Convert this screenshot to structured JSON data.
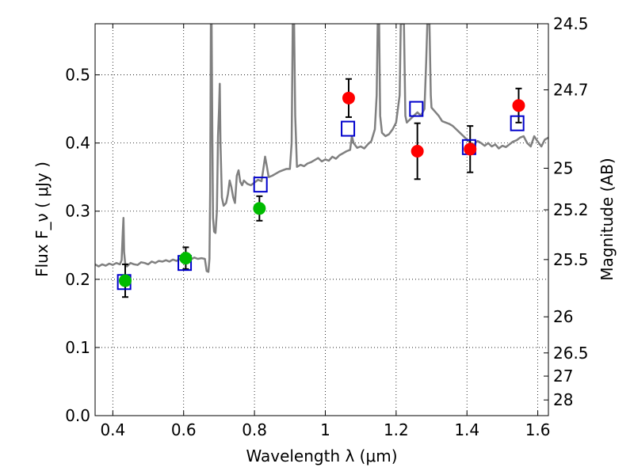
{
  "chart_data": {
    "type": "scatter",
    "xlabel": "Wavelength  λ (μm)",
    "ylabel": "Flux  F_ν  ( μJy )",
    "ylabel_right": "Magnitude (AB)",
    "xlim": [
      0.35,
      1.63
    ],
    "ylim": [
      0.0,
      0.575
    ],
    "grid": true,
    "x_ticks": [
      0.4,
      0.6,
      0.8,
      1.0,
      1.2,
      1.4,
      1.6
    ],
    "x_tick_labels": [
      "0.4",
      "0.6",
      "0.8",
      "1",
      "1.2",
      "1.4",
      "1.6"
    ],
    "y_ticks": [
      0.0,
      0.1,
      0.2,
      0.3,
      0.4,
      0.5
    ],
    "y_tick_labels": [
      "0.0",
      "0.1",
      "0.2",
      "0.3",
      "0.4",
      "0.5"
    ],
    "right_axis_ticks": [
      {
        "label": "24.5",
        "flux": 0.575
      },
      {
        "label": "24.7",
        "flux": 0.478
      },
      {
        "label": "25",
        "flux": 0.363
      },
      {
        "label": "25.2",
        "flux": 0.302
      },
      {
        "label": "25.5",
        "flux": 0.229
      },
      {
        "label": "26",
        "flux": 0.145
      },
      {
        "label": "26.5",
        "flux": 0.092
      },
      {
        "label": "27",
        "flux": 0.058
      },
      {
        "label": "28",
        "flux": 0.023
      }
    ],
    "series": [
      {
        "kind": "line",
        "color": "#808080",
        "points": [
          [
            0.35,
            0.222
          ],
          [
            0.36,
            0.219
          ],
          [
            0.37,
            0.222
          ],
          [
            0.38,
            0.22
          ],
          [
            0.39,
            0.223
          ],
          [
            0.4,
            0.221
          ],
          [
            0.41,
            0.224
          ],
          [
            0.42,
            0.222
          ],
          [
            0.425,
            0.228
          ],
          [
            0.428,
            0.268
          ],
          [
            0.43,
            0.29
          ],
          [
            0.432,
            0.24
          ],
          [
            0.435,
            0.223
          ],
          [
            0.44,
            0.219
          ],
          [
            0.45,
            0.224
          ],
          [
            0.46,
            0.222
          ],
          [
            0.47,
            0.221
          ],
          [
            0.48,
            0.225
          ],
          [
            0.49,
            0.224
          ],
          [
            0.5,
            0.222
          ],
          [
            0.51,
            0.226
          ],
          [
            0.52,
            0.224
          ],
          [
            0.53,
            0.227
          ],
          [
            0.54,
            0.226
          ],
          [
            0.55,
            0.228
          ],
          [
            0.56,
            0.226
          ],
          [
            0.57,
            0.229
          ],
          [
            0.58,
            0.227
          ],
          [
            0.59,
            0.23
          ],
          [
            0.6,
            0.228
          ],
          [
            0.61,
            0.23
          ],
          [
            0.62,
            0.229
          ],
          [
            0.63,
            0.232
          ],
          [
            0.64,
            0.23
          ],
          [
            0.65,
            0.231
          ],
          [
            0.66,
            0.23
          ],
          [
            0.665,
            0.212
          ],
          [
            0.67,
            0.211
          ],
          [
            0.673,
            0.23
          ],
          [
            0.675,
            0.33
          ],
          [
            0.677,
            0.575
          ],
          [
            0.679,
            0.575
          ],
          [
            0.681,
            0.42
          ],
          [
            0.683,
            0.29
          ],
          [
            0.686,
            0.27
          ],
          [
            0.69,
            0.268
          ],
          [
            0.694,
            0.3
          ],
          [
            0.697,
            0.41
          ],
          [
            0.7,
            0.45
          ],
          [
            0.702,
            0.487
          ],
          [
            0.704,
            0.4
          ],
          [
            0.708,
            0.32
          ],
          [
            0.713,
            0.308
          ],
          [
            0.72,
            0.312
          ],
          [
            0.725,
            0.325
          ],
          [
            0.73,
            0.345
          ],
          [
            0.735,
            0.335
          ],
          [
            0.74,
            0.32
          ],
          [
            0.745,
            0.312
          ],
          [
            0.75,
            0.352
          ],
          [
            0.755,
            0.36
          ],
          [
            0.76,
            0.343
          ],
          [
            0.765,
            0.338
          ],
          [
            0.77,
            0.345
          ],
          [
            0.78,
            0.34
          ],
          [
            0.79,
            0.338
          ],
          [
            0.8,
            0.342
          ],
          [
            0.81,
            0.346
          ],
          [
            0.82,
            0.344
          ],
          [
            0.825,
            0.362
          ],
          [
            0.83,
            0.38
          ],
          [
            0.835,
            0.366
          ],
          [
            0.84,
            0.35
          ],
          [
            0.85,
            0.352
          ],
          [
            0.86,
            0.355
          ],
          [
            0.87,
            0.358
          ],
          [
            0.88,
            0.36
          ],
          [
            0.89,
            0.362
          ],
          [
            0.9,
            0.362
          ],
          [
            0.905,
            0.4
          ],
          [
            0.908,
            0.575
          ],
          [
            0.912,
            0.575
          ],
          [
            0.915,
            0.44
          ],
          [
            0.92,
            0.365
          ],
          [
            0.93,
            0.368
          ],
          [
            0.94,
            0.366
          ],
          [
            0.95,
            0.37
          ],
          [
            0.96,
            0.372
          ],
          [
            0.97,
            0.375
          ],
          [
            0.98,
            0.378
          ],
          [
            0.99,
            0.373
          ],
          [
            1.0,
            0.376
          ],
          [
            1.01,
            0.374
          ],
          [
            1.02,
            0.38
          ],
          [
            1.03,
            0.377
          ],
          [
            1.04,
            0.382
          ],
          [
            1.05,
            0.385
          ],
          [
            1.06,
            0.388
          ],
          [
            1.07,
            0.39
          ],
          [
            1.075,
            0.41
          ],
          [
            1.08,
            0.4
          ],
          [
            1.09,
            0.393
          ],
          [
            1.1,
            0.395
          ],
          [
            1.11,
            0.392
          ],
          [
            1.12,
            0.398
          ],
          [
            1.13,
            0.403
          ],
          [
            1.14,
            0.42
          ],
          [
            1.145,
            0.47
          ],
          [
            1.148,
            0.575
          ],
          [
            1.152,
            0.575
          ],
          [
            1.155,
            0.44
          ],
          [
            1.16,
            0.415
          ],
          [
            1.17,
            0.41
          ],
          [
            1.18,
            0.413
          ],
          [
            1.19,
            0.42
          ],
          [
            1.2,
            0.43
          ],
          [
            1.21,
            0.47
          ],
          [
            1.213,
            0.575
          ],
          [
            1.222,
            0.575
          ],
          [
            1.226,
            0.44
          ],
          [
            1.23,
            0.43
          ],
          [
            1.24,
            0.435
          ],
          [
            1.25,
            0.44
          ],
          [
            1.26,
            0.445
          ],
          [
            1.27,
            0.44
          ],
          [
            1.28,
            0.45
          ],
          [
            1.285,
            0.52
          ],
          [
            1.288,
            0.575
          ],
          [
            1.294,
            0.575
          ],
          [
            1.298,
            0.47
          ],
          [
            1.3,
            0.452
          ],
          [
            1.31,
            0.446
          ],
          [
            1.32,
            0.44
          ],
          [
            1.33,
            0.432
          ],
          [
            1.34,
            0.43
          ],
          [
            1.35,
            0.428
          ],
          [
            1.36,
            0.425
          ],
          [
            1.37,
            0.42
          ],
          [
            1.38,
            0.415
          ],
          [
            1.39,
            0.41
          ],
          [
            1.4,
            0.405
          ],
          [
            1.41,
            0.4
          ],
          [
            1.42,
            0.398
          ],
          [
            1.43,
            0.403
          ],
          [
            1.44,
            0.4
          ],
          [
            1.45,
            0.396
          ],
          [
            1.46,
            0.4
          ],
          [
            1.47,
            0.395
          ],
          [
            1.48,
            0.398
          ],
          [
            1.49,
            0.392
          ],
          [
            1.5,
            0.396
          ],
          [
            1.51,
            0.394
          ],
          [
            1.52,
            0.398
          ],
          [
            1.53,
            0.402
          ],
          [
            1.54,
            0.404
          ],
          [
            1.55,
            0.408
          ],
          [
            1.56,
            0.41
          ],
          [
            1.57,
            0.4
          ],
          [
            1.58,
            0.395
          ],
          [
            1.59,
            0.41
          ],
          [
            1.6,
            0.402
          ],
          [
            1.61,
            0.395
          ],
          [
            1.62,
            0.405
          ],
          [
            1.63,
            0.408
          ]
        ]
      },
      {
        "kind": "points",
        "marker": "circle",
        "color": "#00bb00",
        "points": [
          {
            "x": 0.435,
            "y": 0.198,
            "err": 0.024
          },
          {
            "x": 0.606,
            "y": 0.231,
            "err": 0.016
          },
          {
            "x": 0.814,
            "y": 0.304,
            "err": 0.018
          }
        ]
      },
      {
        "kind": "points",
        "marker": "circle",
        "color": "#ff0000",
        "points": [
          {
            "x": 1.066,
            "y": 0.466,
            "err": 0.028
          },
          {
            "x": 1.26,
            "y": 0.388,
            "err": 0.041
          },
          {
            "x": 1.409,
            "y": 0.391,
            "err": 0.034
          },
          {
            "x": 1.546,
            "y": 0.455,
            "err": 0.025
          }
        ]
      },
      {
        "kind": "points",
        "marker": "open-square",
        "color": "#0000cc",
        "points": [
          {
            "x": 0.432,
            "y": 0.196
          },
          {
            "x": 0.603,
            "y": 0.224
          },
          {
            "x": 0.817,
            "y": 0.339
          },
          {
            "x": 1.064,
            "y": 0.421
          },
          {
            "x": 1.257,
            "y": 0.45
          },
          {
            "x": 1.406,
            "y": 0.394
          },
          {
            "x": 1.542,
            "y": 0.429
          }
        ]
      }
    ]
  }
}
